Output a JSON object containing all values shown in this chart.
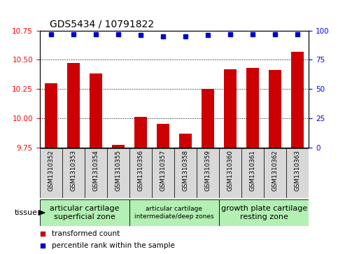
{
  "title": "GDS5434 / 10791822",
  "samples": [
    "GSM1310352",
    "GSM1310353",
    "GSM1310354",
    "GSM1310355",
    "GSM1310356",
    "GSM1310357",
    "GSM1310358",
    "GSM1310359",
    "GSM1310360",
    "GSM1310361",
    "GSM1310362",
    "GSM1310363"
  ],
  "bar_values": [
    10.3,
    10.47,
    10.38,
    9.77,
    10.01,
    9.95,
    9.87,
    10.25,
    10.42,
    10.43,
    10.41,
    10.57
  ],
  "percentile_values": [
    97,
    97,
    97,
    97,
    96,
    95,
    95,
    96,
    97,
    97,
    97,
    97
  ],
  "ylim_left": [
    9.75,
    10.75
  ],
  "ylim_right": [
    0,
    100
  ],
  "yticks_left": [
    9.75,
    10.0,
    10.25,
    10.5,
    10.75
  ],
  "yticks_right": [
    0,
    25,
    50,
    75,
    100
  ],
  "bar_color": "#cc0000",
  "dot_color": "#0000cc",
  "bar_bottom": 9.75,
  "tissue_groups": [
    {
      "label": "articular cartilage\nsuperficial zone",
      "start": 0,
      "end": 4,
      "color": "#b3f0b3",
      "fontsize": 8.0
    },
    {
      "label": "articular cartilage\nintermediate/deep zones",
      "start": 4,
      "end": 8,
      "color": "#b3f0b3",
      "fontsize": 6.5
    },
    {
      "label": "growth plate cartilage\nresting zone",
      "start": 8,
      "end": 12,
      "color": "#b3f0b3",
      "fontsize": 8.0
    }
  ],
  "tissue_label": "tissue",
  "legend_items": [
    {
      "color": "#cc0000",
      "label": "transformed count"
    },
    {
      "color": "#0000cc",
      "label": "percentile rank within the sample"
    }
  ],
  "col_bg_color": "#d8d8d8",
  "title_fontsize": 10,
  "tick_fontsize": 7.5,
  "bar_width": 0.55,
  "dot_size": 4
}
